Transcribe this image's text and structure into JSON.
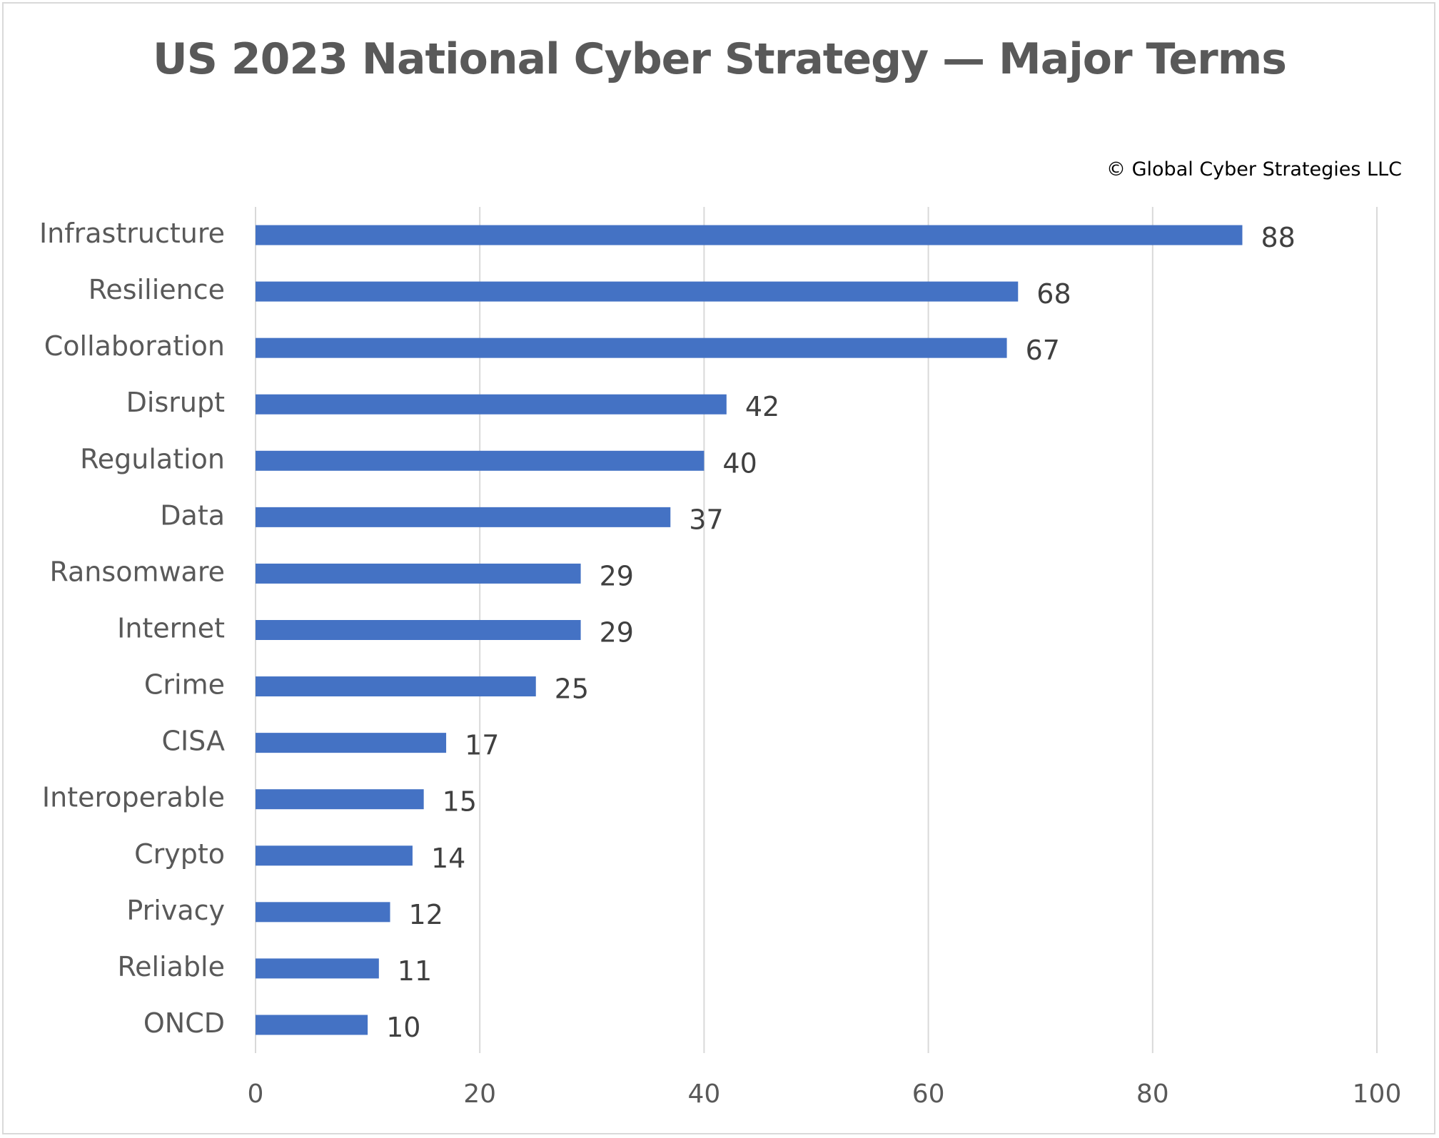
{
  "title": "US 2023 National Cyber Strategy — Major Terms",
  "copyright": "© Global Cyber Strategies LLC",
  "colors": {
    "bar": "#4472c4",
    "grid": "#d9d9d9",
    "title": "#595959"
  },
  "chart_data": {
    "type": "bar",
    "orientation": "horizontal",
    "categories": [
      "Infrastructure",
      "Resilience",
      "Collaboration",
      "Disrupt",
      "Regulation",
      "Data",
      "Ransomware",
      "Internet",
      "Crime",
      "CISA",
      "Interoperable",
      "Crypto",
      "Privacy",
      "Reliable",
      "ONCD"
    ],
    "values": [
      88,
      68,
      67,
      42,
      40,
      37,
      29,
      29,
      25,
      17,
      15,
      14,
      12,
      11,
      10
    ],
    "xlim": [
      0,
      100
    ],
    "xticks": [
      "0",
      "20",
      "40",
      "60",
      "80",
      "100"
    ],
    "grid": true,
    "data_labels": true,
    "xlabel": "",
    "ylabel": ""
  }
}
